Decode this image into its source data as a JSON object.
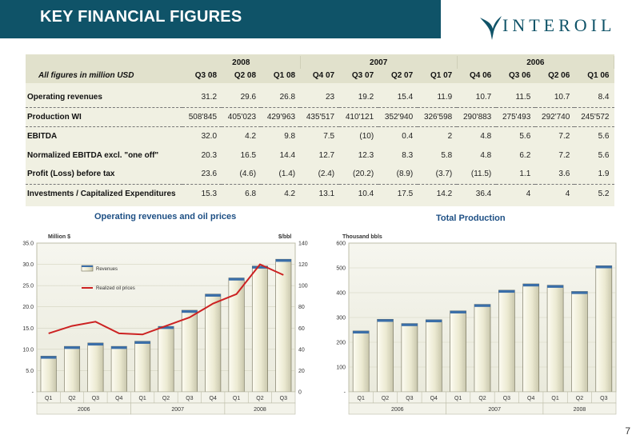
{
  "header": {
    "title": "KEY FINANCIAL FIGURES",
    "logo_text": "INTEROIL"
  },
  "table": {
    "unit_label": "All figures in million USD",
    "year_groups": [
      {
        "year": "2008",
        "span": 3
      },
      {
        "year": "2007",
        "span": 4
      },
      {
        "year": "2006",
        "span": 4
      }
    ],
    "columns": [
      "Q3 08",
      "Q2 08",
      "Q1 08",
      "Q4 07",
      "Q3 07",
      "Q2 07",
      "Q1 07",
      "Q4 06",
      "Q3 06",
      "Q2 06",
      "Q1 06"
    ],
    "rows": [
      {
        "label": "Operating revenues",
        "values": [
          "31.2",
          "29.6",
          "26.8",
          "23",
          "19.2",
          "15.4",
          "11.9",
          "10.7",
          "11.5",
          "10.7",
          "8.4"
        ]
      },
      {
        "label": "Production WI",
        "values": [
          "508'845",
          "405'023",
          "429'963",
          "435'517",
          "410'121",
          "352'940",
          "326'598",
          "290'883",
          "275'493",
          "292'740",
          "245'572"
        ]
      },
      {
        "label": "EBITDA",
        "values": [
          "32.0",
          "4.2",
          "9.8",
          "7.5",
          "(10)",
          "0.4",
          "2",
          "4.8",
          "5.6",
          "7.2",
          "5.6"
        ]
      },
      {
        "label": "Normalized EBITDA excl. \"one off\"",
        "values": [
          "20.3",
          "16.5",
          "14.4",
          "12.7",
          "12.3",
          "8.3",
          "5.8",
          "4.8",
          "6.2",
          "7.2",
          "5.6"
        ]
      },
      {
        "label": "Profit (Loss) before tax",
        "values": [
          "23.6",
          "(4.6)",
          "(1.4)",
          "(2.4)",
          "(20.2)",
          "(8.9)",
          "(3.7)",
          "(11.5)",
          "1.1",
          "3.6",
          "1.9"
        ]
      },
      {
        "label": "Investments / Capitalized Expenditures",
        "values": [
          "15.3",
          "6.8",
          "4.2",
          "13.1",
          "10.4",
          "17.5",
          "14.2",
          "36.4",
          "4",
          "4",
          "5.2"
        ]
      }
    ]
  },
  "chart_data": [
    {
      "type": "bar",
      "title": "Operating revenues and oil prices",
      "ylabel": "Million $",
      "y2label": "$/bbl",
      "categories": [
        "Q1",
        "Q2",
        "Q3",
        "Q4",
        "Q1",
        "Q2",
        "Q3",
        "Q4",
        "Q1",
        "Q2",
        "Q3"
      ],
      "year_groups": [
        {
          "year": "2006",
          "span": 4
        },
        {
          "year": "2007",
          "span": 4
        },
        {
          "year": "2008",
          "span": 3
        }
      ],
      "ylim": [
        0,
        35
      ],
      "yticks": [
        "-",
        "5.0",
        "10.0",
        "15.0",
        "20.0",
        "25.0",
        "30.0",
        "35.0"
      ],
      "y2lim": [
        0,
        140
      ],
      "y2ticks": [
        "0",
        "20",
        "40",
        "60",
        "80",
        "100",
        "120",
        "140"
      ],
      "series": [
        {
          "name": "Revenues",
          "type": "bar",
          "values": [
            8.4,
            10.7,
            11.5,
            10.7,
            11.9,
            15.4,
            19.2,
            23,
            26.8,
            29.6,
            31.2
          ]
        },
        {
          "name": "Realized oil prices",
          "type": "line",
          "axis": "right",
          "color": "#cc2222",
          "values": [
            55,
            62,
            66,
            55,
            54,
            62,
            70,
            83,
            92,
            120,
            110
          ]
        }
      ],
      "legend": "top-left",
      "grid": true
    },
    {
      "type": "bar",
      "title": "Total Production",
      "ylabel": "Thousand bbls",
      "categories": [
        "Q1",
        "Q2",
        "Q3",
        "Q4",
        "Q1",
        "Q2",
        "Q3",
        "Q4",
        "Q1",
        "Q2",
        "Q3"
      ],
      "year_groups": [
        {
          "year": "2006",
          "span": 4
        },
        {
          "year": "2007",
          "span": 4
        },
        {
          "year": "2008",
          "span": 3
        }
      ],
      "ylim": [
        0,
        600
      ],
      "yticks": [
        "-",
        "100",
        "200",
        "300",
        "400",
        "500",
        "600"
      ],
      "series": [
        {
          "name": "",
          "type": "bar",
          "values": [
            245.6,
            292.7,
            275.5,
            290.9,
            326.6,
            352.9,
            410.1,
            435.5,
            430.0,
            405.0,
            508.8
          ]
        }
      ],
      "grid": true
    }
  ],
  "page_number": "7",
  "colors": {
    "header_bg": "#0f5368",
    "chart_title": "#1d4f84",
    "oil_line": "#cc2222",
    "bar_fill": "#f2f0dc",
    "bar_edge": "#7a7760"
  }
}
